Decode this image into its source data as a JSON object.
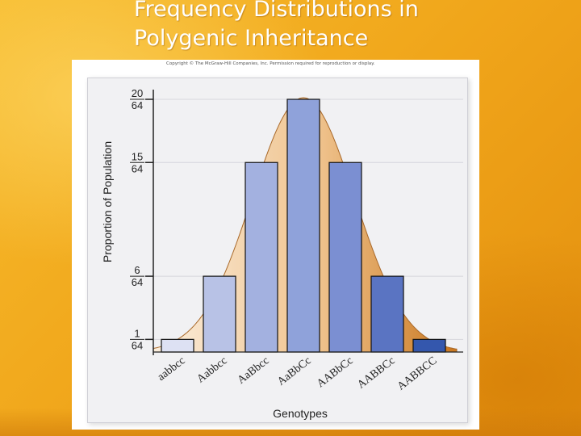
{
  "slide": {
    "title_line1": "Frequency Distributions in",
    "title_line2": "Polygenic Inheritance",
    "copyright": "Copyright © The McGraw-Hill Companies, Inc. Permission required for reproduction or display."
  },
  "colors": {
    "background": "#f2a81a",
    "curve_light": "#fbeedd",
    "curve_dark": "#c9771e",
    "bar_stroke": "#111111"
  },
  "chart_data": {
    "type": "bar",
    "title": "",
    "xlabel": "Genotypes",
    "ylabel": "Proportion of Population",
    "categories": [
      "aabbcc",
      "Aabbcc",
      "AaBbcc",
      "AaBbCc",
      "AABbCc",
      "AABBCc",
      "AABBCC"
    ],
    "values": [
      1,
      6,
      15,
      20,
      15,
      6,
      1
    ],
    "value_denominator": 64,
    "bar_colors": [
      "#dde1f3",
      "#b8c2e6",
      "#a3b1e0",
      "#8fa2da",
      "#7b8fd2",
      "#5a74c2",
      "#3457ad"
    ],
    "yticks": [
      {
        "value": 1,
        "numerator": "1",
        "denominator": "64"
      },
      {
        "value": 6,
        "numerator": "6",
        "denominator": "64"
      },
      {
        "value": 15,
        "numerator": "15",
        "denominator": "64"
      },
      {
        "value": 20,
        "numerator": "20",
        "denominator": "64"
      }
    ],
    "ylim": [
      0,
      20
    ],
    "grid": true,
    "overlay": "normal-curve"
  }
}
